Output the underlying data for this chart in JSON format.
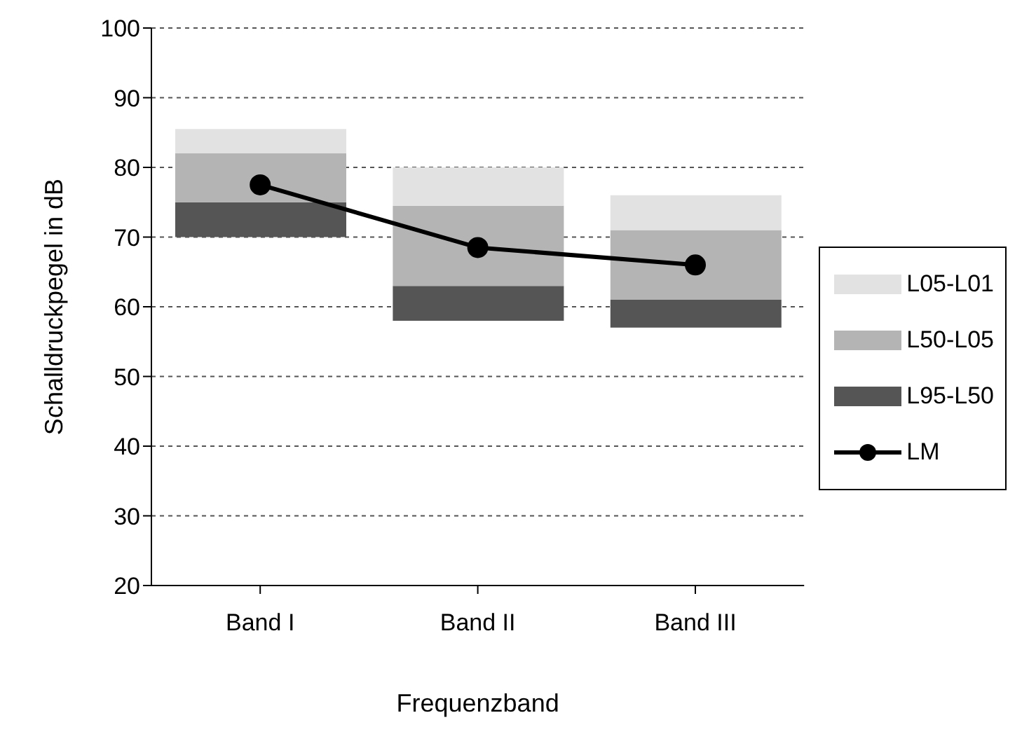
{
  "chart_data": {
    "type": "bar",
    "xlabel": "Frequenzband",
    "ylabel": "Schalldruckpegel in dB",
    "categories": [
      "Band I",
      "Band II",
      "Band III"
    ],
    "series": [
      {
        "name": "L95-L50",
        "color": "#555555",
        "base": [
          70,
          58,
          57
        ],
        "values": [
          5,
          5,
          4
        ]
      },
      {
        "name": "L50-L05",
        "color": "#b4b4b4",
        "base": [
          75,
          63,
          61
        ],
        "values": [
          7,
          11.5,
          10
        ]
      },
      {
        "name": "L05-L01",
        "color": "#e2e2e2",
        "base": [
          82,
          74.5,
          71
        ],
        "values": [
          3.5,
          5.5,
          5
        ]
      },
      {
        "name": "LM",
        "type": "line",
        "color": "#000000",
        "values": [
          77.5,
          68.5,
          66
        ],
        "marker": "circle"
      }
    ],
    "ylim": [
      20,
      100
    ],
    "yticks": [
      20,
      30,
      40,
      50,
      60,
      70,
      80,
      90,
      100
    ],
    "grid": "y",
    "legend": "right"
  }
}
